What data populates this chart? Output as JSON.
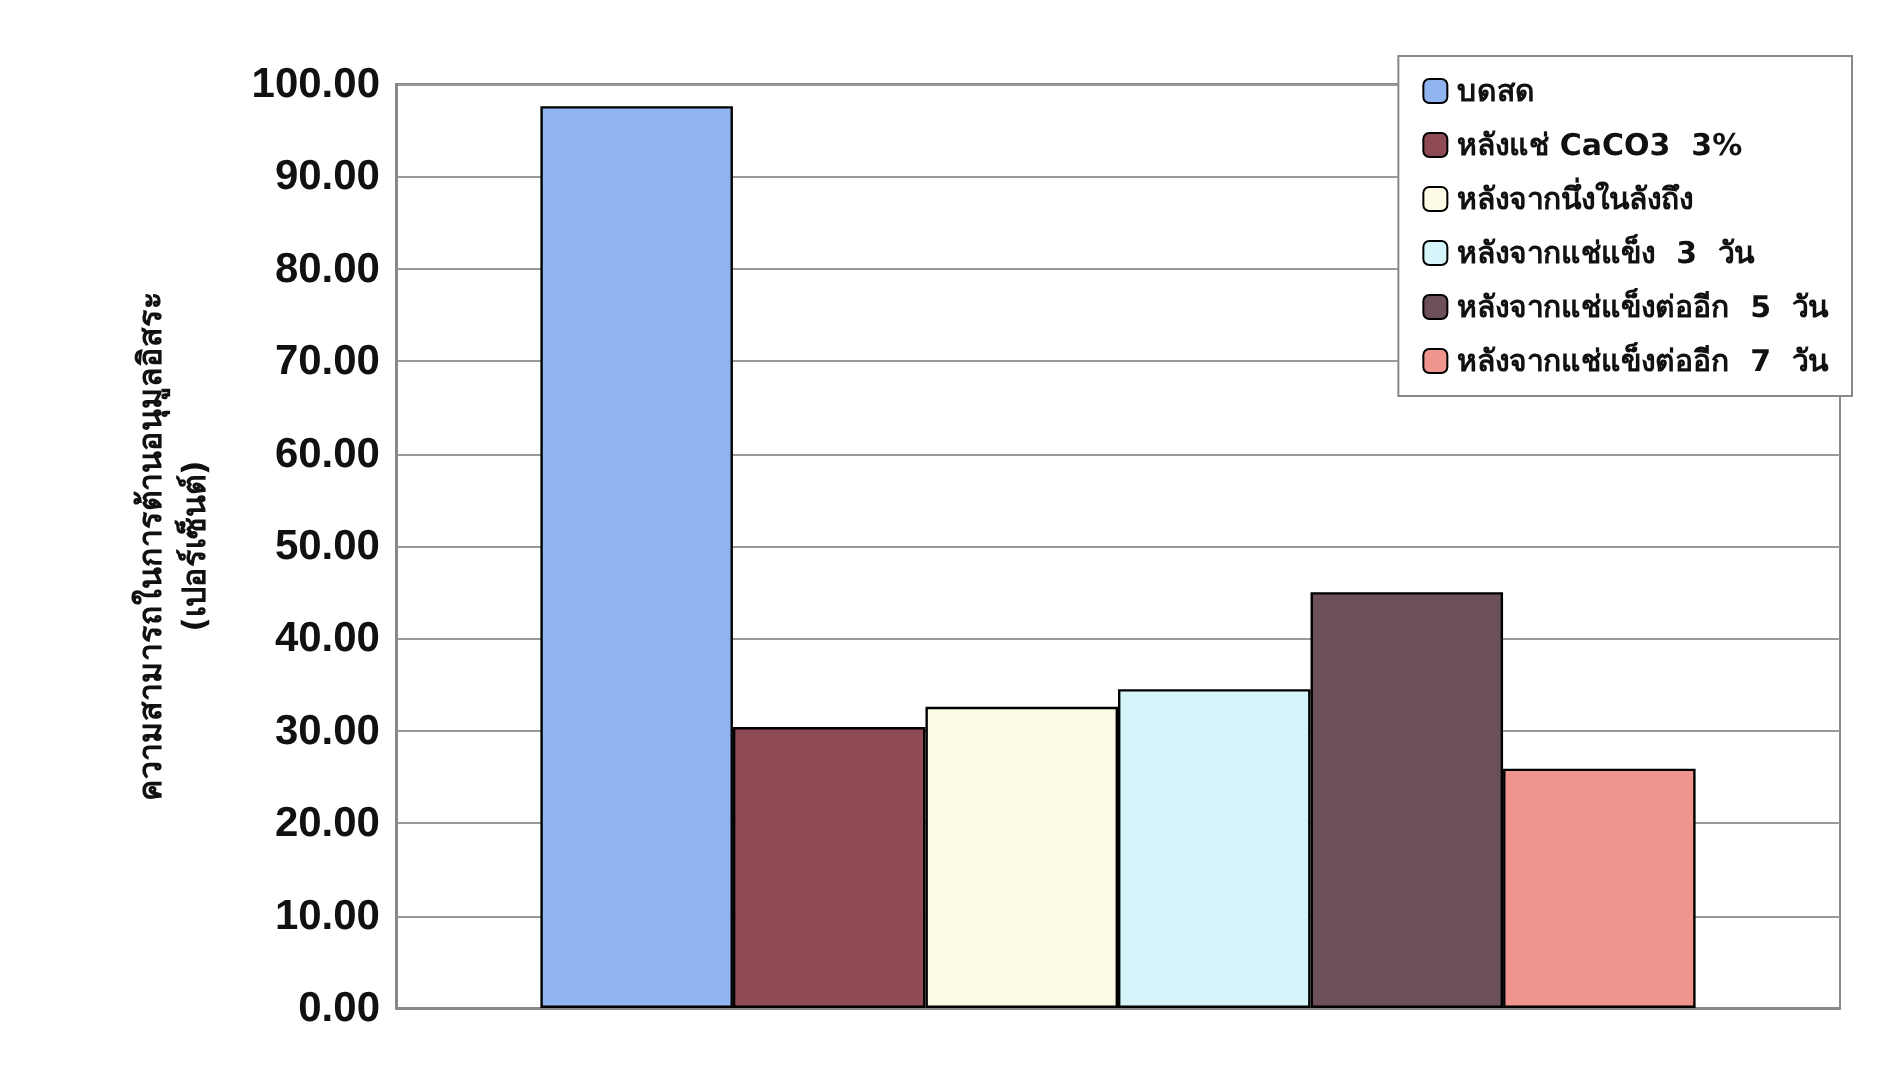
{
  "chart_data": {
    "type": "bar",
    "ylabel": "ความสามารถในการต้านอนุมูลอิสระ\n(เปอร์เซ็นต์)",
    "categories": [
      null
    ],
    "series": [
      {
        "name": "บดสด",
        "color": "#8fb4f0",
        "values": [
          97.6
        ]
      },
      {
        "name": "หลังแช่ CaCO3  3%",
        "color": "#8e4a55",
        "values": [
          30.4
        ]
      },
      {
        "name": "หลังจากนึ่งในลังถึง",
        "color": "#fdfbe6",
        "values": [
          32.6
        ]
      },
      {
        "name": "หลังจากแช่แข็ง  3  วัน",
        "color": "#d5f5fb",
        "values": [
          34.5
        ]
      },
      {
        "name": "หลังจากแช่แข็งต่ออีก  5  วัน",
        "color": "#6b4f5a",
        "values": [
          45.0
        ]
      },
      {
        "name": "หลังจากแช่แข็งต่ออีก  7  วัน",
        "color": "#f0958e",
        "values": [
          25.9
        ]
      }
    ],
    "ylim": [
      0,
      100
    ],
    "yticks": [
      {
        "value": 0,
        "label": "0.00"
      },
      {
        "value": 10,
        "label": "10.00"
      },
      {
        "value": 20,
        "label": "20.00"
      },
      {
        "value": 30,
        "label": "30.00"
      },
      {
        "value": 40,
        "label": "40.00"
      },
      {
        "value": 50,
        "label": "50.00"
      },
      {
        "value": 60,
        "label": "60.00"
      },
      {
        "value": 70,
        "label": "70.00"
      },
      {
        "value": 80,
        "label": "80.00"
      },
      {
        "value": 90,
        "label": "90.00"
      },
      {
        "value": 100,
        "label": "100.00"
      }
    ],
    "grid": "y",
    "legend": "top right"
  }
}
